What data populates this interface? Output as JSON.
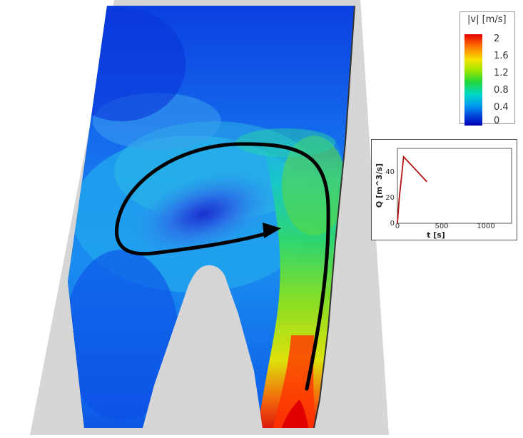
{
  "legend": {
    "title": "|v| [m/s]",
    "ticks": [
      "2",
      "1.6",
      "1.2",
      "0.8",
      "0.4",
      "0"
    ],
    "tick_values": [
      2,
      1.6,
      1.2,
      0.8,
      0.4,
      0
    ],
    "colors": [
      "#e60000",
      "#f5e400",
      "#22d83a",
      "#00d8c8",
      "#009cf0",
      "#0000b4"
    ]
  },
  "inset_chart": {
    "xlabel": "t [s]",
    "ylabel": "Q [m^3/s]",
    "x_ticks": [
      "0",
      "500",
      "1000"
    ],
    "y_ticks": [
      "0",
      "20",
      "40"
    ]
  },
  "chart_data": {
    "type": "line",
    "xlabel": "t [s]",
    "ylabel": "Q [m^3/s]",
    "xlim": [
      0,
      1300
    ],
    "ylim": [
      0,
      58
    ],
    "series": [
      {
        "color": "#b31212",
        "x": [
          0,
          20,
          70,
          330
        ],
        "y": [
          0,
          20,
          54,
          34
        ]
      }
    ]
  }
}
